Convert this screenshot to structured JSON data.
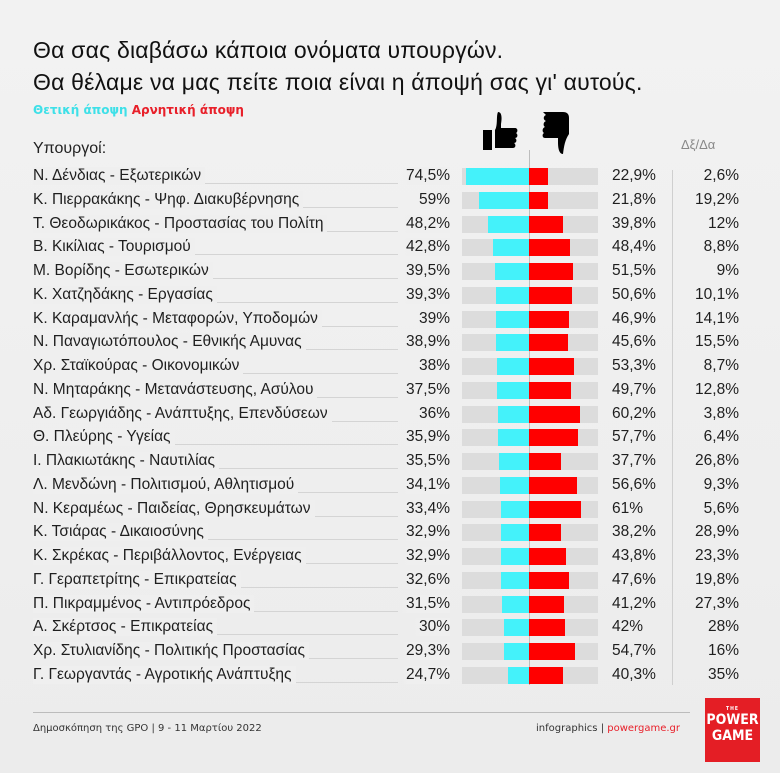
{
  "title_line1": "Θα σας διαβάσω κάποια ονόματα υπουργών.",
  "title_line2": "Θα θέλαμε να μας πείτε ποια είναι η άποψή σας γι' αυτούς.",
  "legend": {
    "positive": "Θετική άποψη",
    "negative": "Αρνητική άποψη"
  },
  "colors": {
    "positive": "#44f2fa",
    "negative": "#ff0000",
    "track": "#dcdcdc"
  },
  "icons": {
    "positive": "thumbs-up-icon",
    "negative": "thumbs-down-icon"
  },
  "headers": {
    "ministers": "Υπουργοί:",
    "dxda": "Δξ/Δα"
  },
  "chart_data": {
    "type": "bar",
    "orientation": "horizontal-diverging",
    "categories": [
      "Ν. Δένδιας - Εξωτερικών",
      "Κ. Πιερρακάκης - Ψηφ. Διακυβέρνησης",
      "Τ. Θεοδωρικάκος - Προστασίας του Πολίτη",
      "Β. Κικίλιας - Τουρισμού",
      "Μ. Βορίδης - Εσωτερικών",
      "Κ. Χατζηδάκης - Εργασίας",
      "Κ. Καραμανλής - Μεταφορών, Υποδομών",
      "Ν. Παναγιωτόπουλος - Εθνικής Αμυνας",
      "Χρ. Σταϊκούρας - Οικονομικών",
      "Ν. Μηταράκης - Μετανάστευσης, Ασύλου",
      "Αδ. Γεωργιάδης - Ανάπτυξης, Επενδύσεων",
      "Θ. Πλεύρης - Υγείας",
      "Ι. Πλακιωτάκης - Ναυτιλίας",
      "Λ. Μενδώνη - Πολιτισμού, Αθλητισμού",
      "Ν. Κεραμέως - Παιδείας, Θρησκευμάτων",
      "Κ. Τσιάρας - Δικαιοσύνης",
      "Κ. Σκρέκας - Περιβάλλοντος, Ενέργειας",
      "Γ. Γεραπετρίτης - Επικρατείας",
      "Π. Πικραμμένος - Αντιπρόεδρος",
      "Α. Σκέρτσος - Επικρατείας",
      "Χρ. Στυλιανίδης - Πολιτικής Προστασίας",
      "Γ. Γεωργαντάς - Αγροτικής Ανάπτυξης"
    ],
    "series": [
      {
        "name": "Θετική άποψη",
        "values": [
          74.5,
          59,
          48.2,
          42.8,
          39.5,
          39.3,
          39,
          38.9,
          38,
          37.5,
          36,
          35.9,
          35.5,
          34.1,
          33.4,
          32.9,
          32.9,
          32.6,
          31.5,
          30,
          29.3,
          24.7
        ],
        "labels": [
          "74,5%",
          "59%",
          "48,2%",
          "42,8%",
          "39,5%",
          "39,3%",
          "39%",
          "38,9%",
          "38%",
          "37,5%",
          "36%",
          "35,9%",
          "35,5%",
          "34,1%",
          "33,4%",
          "32,9%",
          "32,9%",
          "32,6%",
          "31,5%",
          "30%",
          "29,3%",
          "24,7%"
        ]
      },
      {
        "name": "Αρνητική άποψη",
        "values": [
          22.9,
          21.8,
          39.8,
          48.4,
          51.5,
          50.6,
          46.9,
          45.6,
          53.3,
          49.7,
          60.2,
          57.7,
          37.7,
          56.6,
          61,
          38.2,
          43.8,
          47.6,
          41.2,
          42,
          54.7,
          40.3
        ],
        "labels": [
          "22,9%",
          "21,8%",
          "39,8%",
          "48,4%",
          "51,5%",
          "50,6%",
          "46,9%",
          "45,6%",
          "53,3%",
          "49,7%",
          "60,2%",
          "57,7%",
          "37,7%",
          "56,6%",
          "61%",
          "38,2%",
          "43,8%",
          "47,6%",
          "41,2%",
          "42%",
          "54,7%",
          "40,3%"
        ]
      },
      {
        "name": "Δξ/Δα",
        "values": [
          2.6,
          19.2,
          12,
          8.8,
          9,
          10.1,
          14.1,
          15.5,
          8.7,
          12.8,
          3.8,
          6.4,
          26.8,
          9.3,
          5.6,
          28.9,
          23.3,
          19.8,
          27.3,
          28,
          16,
          35
        ],
        "labels": [
          "2,6%",
          "19,2%",
          "12%",
          "8,8%",
          "9%",
          "10,1%",
          "14,1%",
          "15,5%",
          "8,7%",
          "12,8%",
          "3,8%",
          "6,4%",
          "26,8%",
          "9,3%",
          "5,6%",
          "28,9%",
          "23,3%",
          "19,8%",
          "27,3%",
          "28%",
          "16%",
          "35%"
        ]
      }
    ],
    "xlim": [
      0,
      80
    ]
  },
  "footer": {
    "source": "Δημοσκόπηση της GPO | 9 - 11 Μαρτίου 2022",
    "credit": "infographics | ",
    "site": "powergame.gr",
    "logo": "THE POWER GAME"
  }
}
